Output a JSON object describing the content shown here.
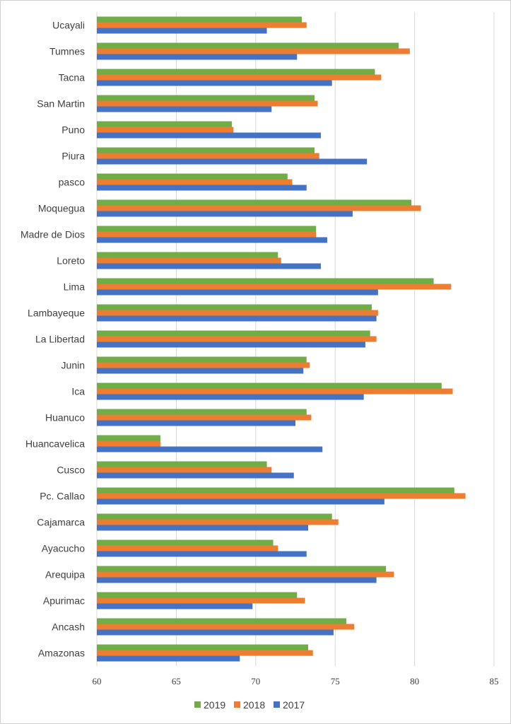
{
  "chart_data": {
    "type": "bar",
    "orientation": "horizontal",
    "title": "",
    "xlabel": "",
    "ylabel": "",
    "xlim": [
      60,
      85
    ],
    "x_ticks": [
      60,
      65,
      70,
      75,
      80,
      85
    ],
    "grid": true,
    "legend_position": "bottom",
    "categories": [
      "Ucayali",
      "Tumnes",
      "Tacna",
      "San Martin",
      "Puno",
      "Piura",
      "pasco",
      "Moquegua",
      "Madre de Dios",
      "Loreto",
      "Lima",
      "Lambayeque",
      "La Libertad",
      "Junin",
      "Ica",
      "Huanuco",
      "Huancavelica",
      "Cusco",
      "Pc. Callao",
      "Cajamarca",
      "Ayacucho",
      "Arequipa",
      "Apurimac",
      "Ancash",
      "Amazonas"
    ],
    "series": [
      {
        "name": "2019",
        "color": "#70AD47",
        "values": [
          72.9,
          79.0,
          77.5,
          73.7,
          68.5,
          73.7,
          72.0,
          79.8,
          73.8,
          71.4,
          81.2,
          77.3,
          77.2,
          73.2,
          81.7,
          73.2,
          64.0,
          70.7,
          82.5,
          74.8,
          71.1,
          78.2,
          72.6,
          75.7,
          73.3
        ]
      },
      {
        "name": "2018",
        "color": "#ED7D31",
        "values": [
          73.2,
          79.7,
          77.9,
          73.9,
          68.6,
          74.0,
          72.3,
          80.4,
          73.8,
          71.6,
          82.3,
          77.7,
          77.6,
          73.4,
          82.4,
          73.5,
          64.0,
          71.0,
          83.2,
          75.2,
          71.4,
          78.7,
          73.1,
          76.2,
          73.6
        ]
      },
      {
        "name": "2017",
        "color": "#4472C4",
        "values": [
          70.7,
          72.6,
          74.8,
          71.0,
          74.1,
          77.0,
          73.2,
          76.1,
          74.5,
          74.1,
          77.7,
          77.6,
          76.9,
          73.0,
          76.8,
          72.5,
          74.2,
          72.4,
          78.1,
          73.3,
          73.2,
          77.6,
          69.8,
          74.9,
          69.0
        ]
      }
    ]
  }
}
